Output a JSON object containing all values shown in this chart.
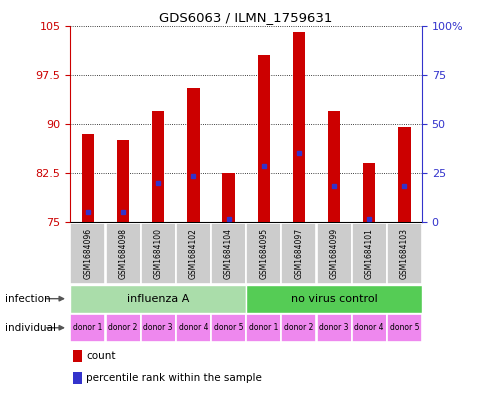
{
  "title": "GDS6063 / ILMN_1759631",
  "samples": [
    "GSM1684096",
    "GSM1684098",
    "GSM1684100",
    "GSM1684102",
    "GSM1684104",
    "GSM1684095",
    "GSM1684097",
    "GSM1684099",
    "GSM1684101",
    "GSM1684103"
  ],
  "red_bar_top": [
    88.5,
    87.5,
    92.0,
    95.5,
    82.5,
    100.5,
    104.0,
    92.0,
    84.0,
    89.5
  ],
  "red_bar_bottom": 75.0,
  "blue_marker_y": [
    76.5,
    76.5,
    81.0,
    82.0,
    75.5,
    83.5,
    85.5,
    80.5,
    75.5,
    80.5
  ],
  "ylim_left": [
    75,
    105
  ],
  "yticks_left": [
    75,
    82.5,
    90,
    97.5,
    105
  ],
  "ytick_labels_left": [
    "75",
    "82.5",
    "90",
    "97.5",
    "105"
  ],
  "ylim_right": [
    0,
    100
  ],
  "yticks_right": [
    0,
    25,
    50,
    75,
    100
  ],
  "ytick_labels_right": [
    "0",
    "25",
    "50",
    "75",
    "100%"
  ],
  "group1_label": "influenza A",
  "group2_label": "no virus control",
  "donors": [
    "donor 1",
    "donor 2",
    "donor 3",
    "donor 4",
    "donor 5",
    "donor 1",
    "donor 2",
    "donor 3",
    "donor 4",
    "donor 5"
  ],
  "infection_label": "infection",
  "individual_label": "individual",
  "legend_count": "count",
  "legend_percentile": "percentile rank within the sample",
  "bar_color": "#CC0000",
  "blue_color": "#3333CC",
  "group_bg_color1": "#AADDAA",
  "group_bg_color2": "#55CC55",
  "donor_bg_color": "#EE88EE",
  "sample_bg_color": "#CCCCCC",
  "left_tick_color": "#CC0000",
  "right_tick_color": "#3333CC",
  "bar_width": 0.35
}
